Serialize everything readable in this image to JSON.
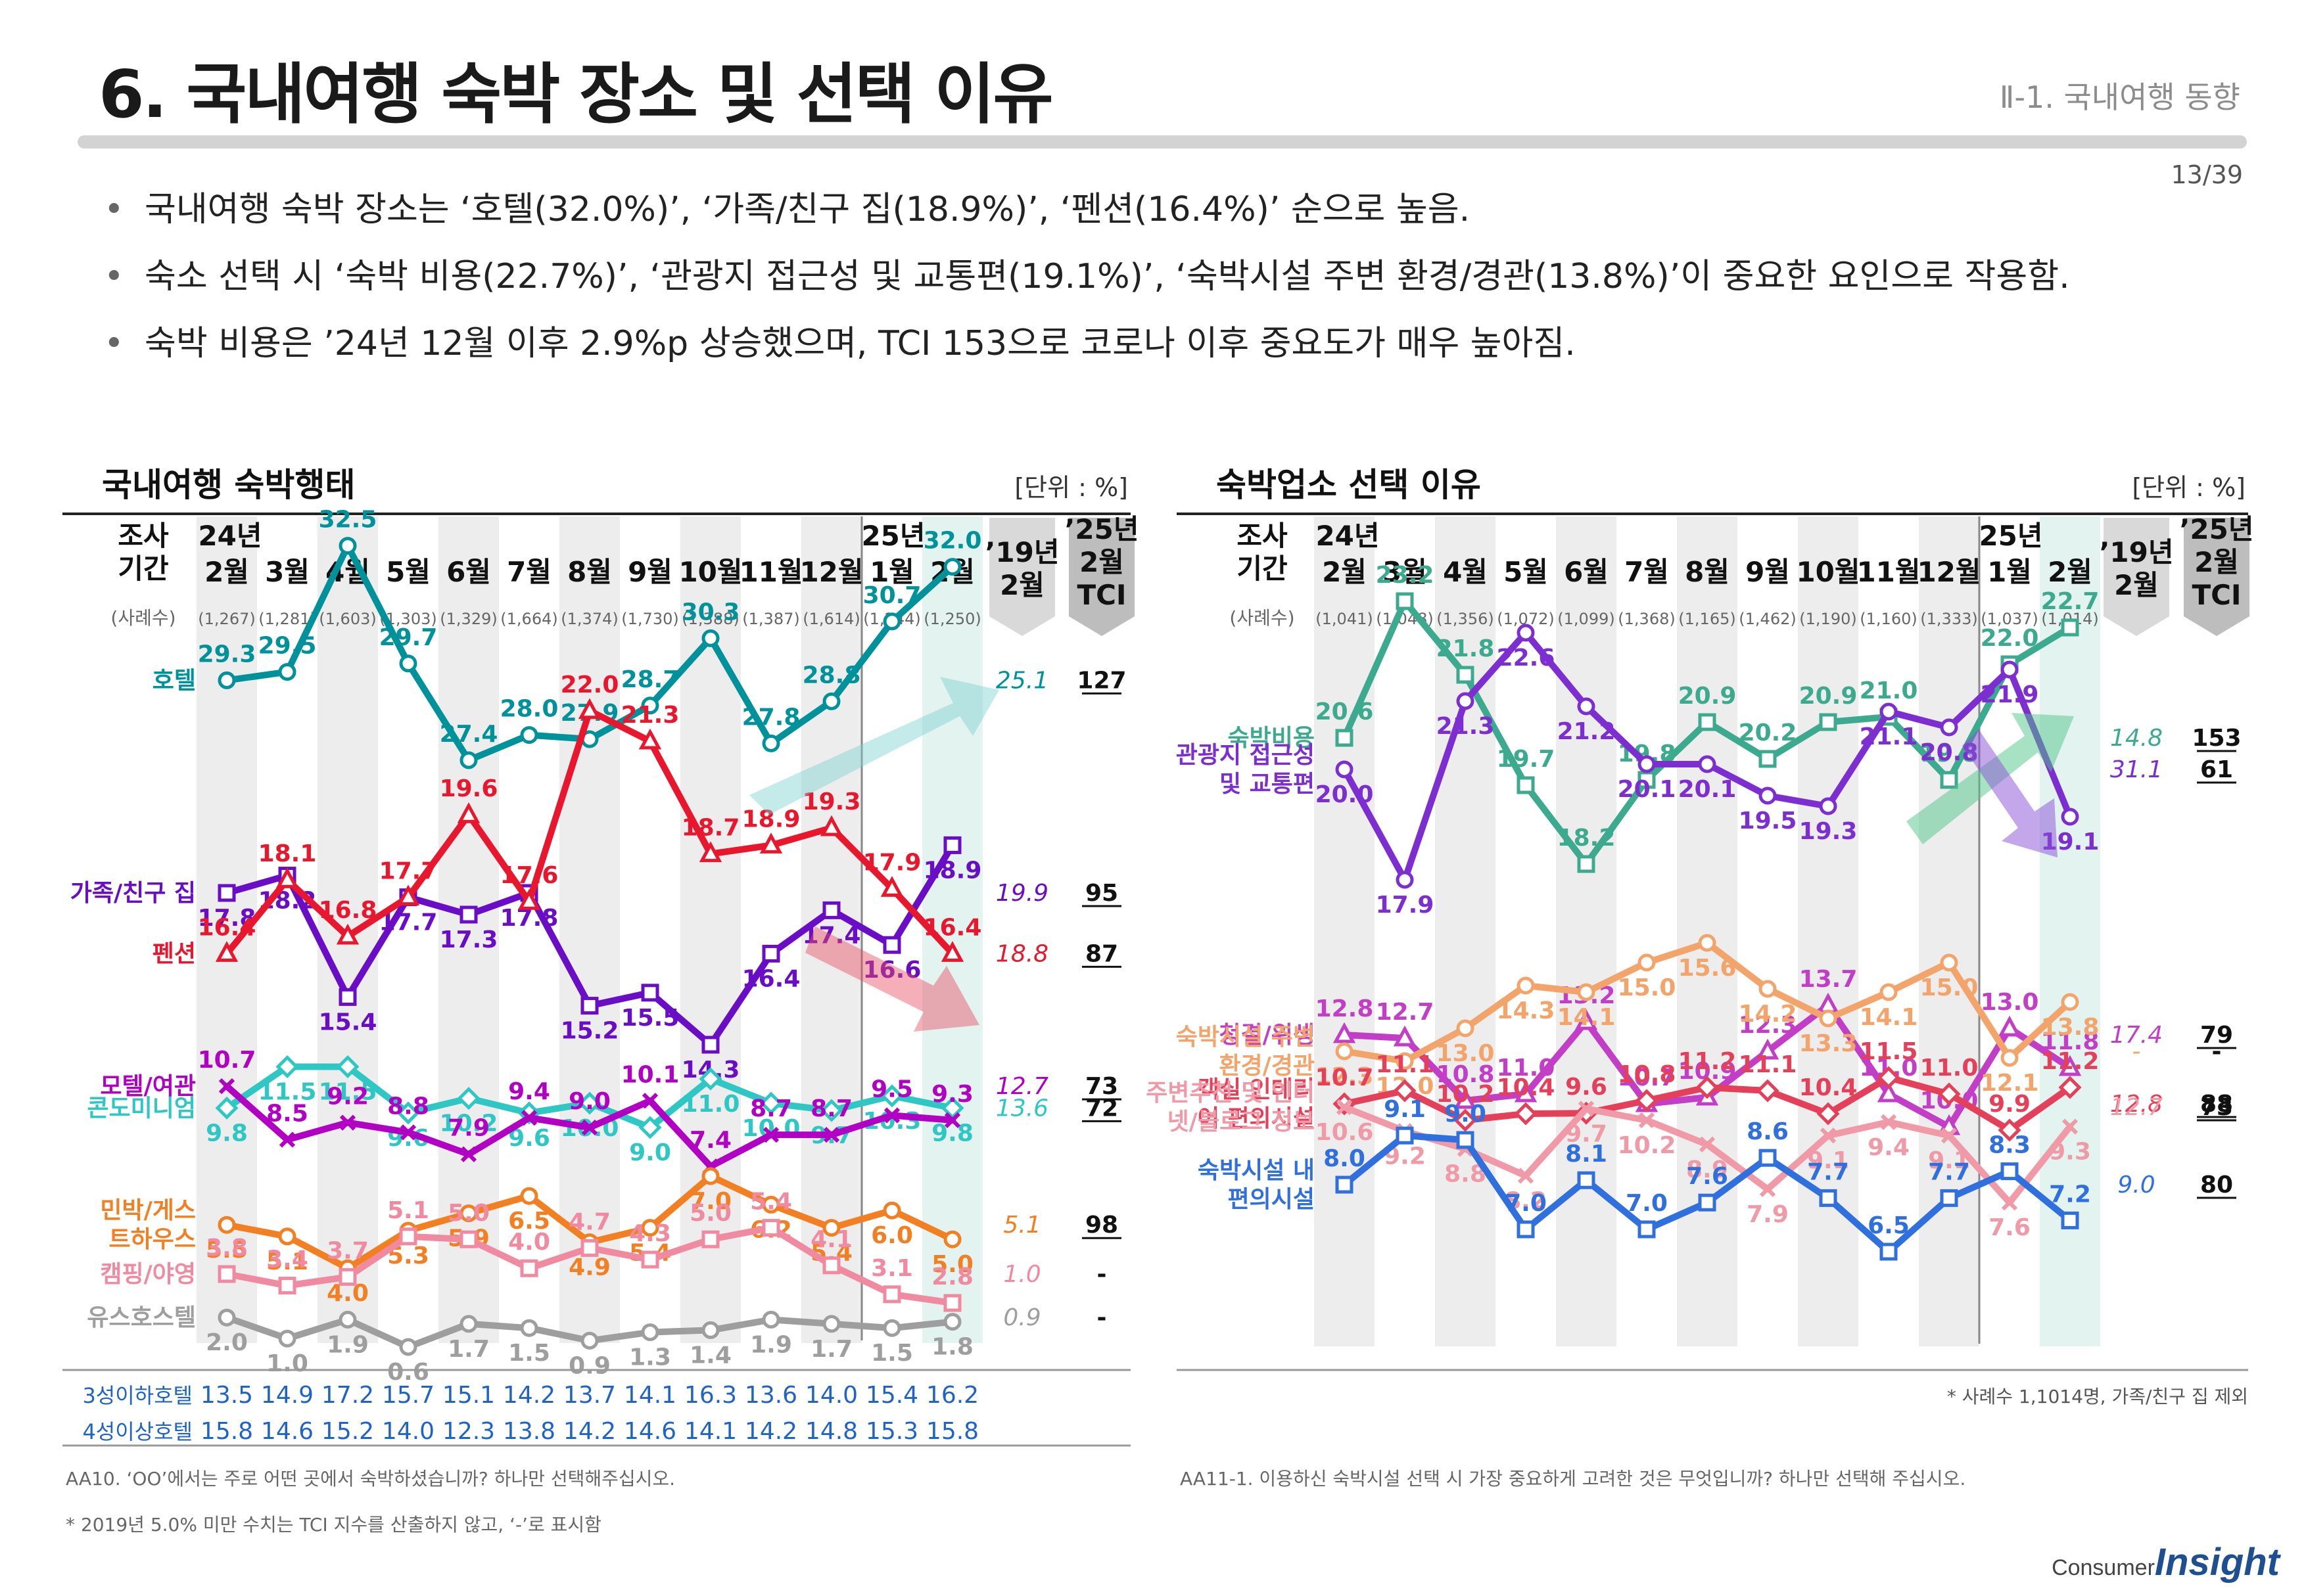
{
  "header": {
    "title": "6. 국내여행 숙박 장소 및 선택 이유",
    "section": "Ⅱ-1. 국내여행 동향",
    "page": "13/39"
  },
  "bullets": [
    "국내여행 숙박 장소는 ‘호텔(32.0%)’, ‘가족/친구 집(18.9%)’, ‘펜션(16.4%)’ 순으로 높음.",
    "숙소 선택 시 ‘숙박 비용(22.7%)’, ‘관광지 접근성 및 교통편(19.1%)’, ‘숙박시설 주변 환경/경관(13.8%)’이 중요한 요인으로 작용함.",
    "숙박 비용은 ’24년 12월 이후 2.9%p 상승했으며, TCI 153으로 코로나 이후 중요도가 매우 높아짐."
  ],
  "logo": {
    "line1": "Consumer",
    "line2": "Insight"
  },
  "chart_data": [
    {
      "type": "line",
      "title": "국내여행 숙박행태",
      "unit": "[단위 : %]",
      "header_period": "조사 기간",
      "header_samples": "(사례수)",
      "year_labels": {
        "first": "24년",
        "recent": "25년"
      },
      "months": [
        "2월",
        "3월",
        "4월",
        "5월",
        "6월",
        "7월",
        "8월",
        "9월",
        "10월",
        "11월",
        "12월",
        "1월",
        "2월"
      ],
      "samples": [
        "(1,267)",
        "(1,281)",
        "(1,603)",
        "(1,303)",
        "(1,329)",
        "(1,664)",
        "(1,374)",
        "(1,730)",
        "(1,388)",
        "(1,387)",
        "(1,614)",
        "(1,244)",
        "(1,250)"
      ],
      "extra_headers": {
        "y19": "’19년 2월",
        "tci": "’25년 2월 TCI"
      },
      "series": [
        {
          "name": "호텔",
          "color": "#00929b",
          "marker": "circle",
          "values": [
            29.3,
            29.5,
            32.5,
            29.7,
            27.4,
            28.0,
            27.9,
            28.7,
            30.3,
            27.8,
            28.8,
            30.7,
            32.0
          ],
          "y19": "25.1",
          "tci": "127"
        },
        {
          "name": "가족/친구 집",
          "color": "#6a0dc6",
          "marker": "square",
          "values": [
            17.8,
            18.2,
            15.4,
            17.7,
            17.3,
            17.8,
            15.2,
            15.5,
            14.3,
            16.4,
            17.4,
            16.6,
            18.9
          ],
          "y19": "19.9",
          "tci": "95"
        },
        {
          "name": "펜션",
          "color": "#e8172d",
          "marker": "triangle",
          "values": [
            16.4,
            18.1,
            16.8,
            17.7,
            19.6,
            17.6,
            22.0,
            21.3,
            18.7,
            18.9,
            19.3,
            17.9,
            16.4
          ],
          "y19": "18.8",
          "tci": "87"
        },
        {
          "name": "콘도미니엄",
          "color": "#2fc7c4",
          "marker": "diamond",
          "values": [
            9.8,
            11.5,
            11.5,
            9.6,
            10.2,
            9.6,
            10.0,
            9.0,
            11.0,
            10.0,
            9.7,
            10.3,
            9.8
          ],
          "y19": "13.6",
          "tci": "72"
        },
        {
          "name": "모텔/여관",
          "color": "#b100c4",
          "marker": "cross",
          "values": [
            10.7,
            8.5,
            9.2,
            8.8,
            7.9,
            9.4,
            9.0,
            10.1,
            7.4,
            8.7,
            8.7,
            9.5,
            9.3
          ],
          "y19": "12.7",
          "tci": "73"
        },
        {
          "name": "민박/게스트하우스",
          "color": "#f27f22",
          "marker": "circle",
          "values": [
            5.5,
            5.1,
            4.0,
            5.3,
            5.9,
            6.5,
            4.9,
            5.4,
            7.0,
            6.2,
            5.4,
            6.0,
            5.0
          ],
          "y19": "5.1",
          "tci": "98"
        },
        {
          "name": "캠핑/야영",
          "color": "#f08aa0",
          "marker": "square",
          "values": [
            3.8,
            3.4,
            3.7,
            5.1,
            5.0,
            4.0,
            4.7,
            4.3,
            5.0,
            5.4,
            4.1,
            3.1,
            2.8
          ],
          "y19": "1.0",
          "tci": "-"
        },
        {
          "name": "유스호스텔",
          "color": "#9e9e9e",
          "marker": "circle",
          "values": [
            2.0,
            1.0,
            1.9,
            0.6,
            1.7,
            1.5,
            0.9,
            1.3,
            1.4,
            1.9,
            1.7,
            1.5,
            1.8
          ],
          "y19": "0.9",
          "tci": "-"
        }
      ],
      "table_rows": [
        {
          "name": "3성이하호텔",
          "values": [
            "13.5",
            "14.9",
            "17.2",
            "15.7",
            "15.1",
            "14.2",
            "13.7",
            "14.1",
            "16.3",
            "13.6",
            "14.0",
            "15.4",
            "16.2"
          ]
        },
        {
          "name": "4성이상호텔",
          "values": [
            "15.8",
            "14.6",
            "15.2",
            "14.0",
            "12.3",
            "13.8",
            "14.2",
            "14.6",
            "14.1",
            "14.2",
            "14.8",
            "15.3",
            "15.8"
          ]
        }
      ],
      "footnotes": [
        "AA10. ‘OO’에서는 주로 어떤 곳에서 숙박하셨습니까? 하나만 선택해주십시오.",
        "* 2019년 5.0% 미만 수치는 TCI 지수를 산출하지 않고, ‘-’로 표시함"
      ]
    },
    {
      "type": "line",
      "title": "숙박업소 선택 이유",
      "unit": "[단위 : %]",
      "header_period": "조사 기간",
      "header_samples": "(사례수)",
      "year_labels": {
        "first": "24년",
        "recent": "25년"
      },
      "months": [
        "2월",
        "3월",
        "4월",
        "5월",
        "6월",
        "7월",
        "8월",
        "9월",
        "10월",
        "11월",
        "12월",
        "1월",
        "2월"
      ],
      "samples": [
        "(1,041)",
        "(1,048)",
        "(1,356)",
        "(1,072)",
        "(1,099)",
        "(1,368)",
        "(1,165)",
        "(1,462)",
        "(1,190)",
        "(1,160)",
        "(1,333)",
        "(1,037)",
        "(1,014)"
      ],
      "extra_headers": {
        "y19": "’19년 2월",
        "tci": "’25년 2월 TCI"
      },
      "series": [
        {
          "name": "숙박비용",
          "color": "#3caa8e",
          "marker": "square",
          "values": [
            20.6,
            23.2,
            21.8,
            19.7,
            18.2,
            19.8,
            20.9,
            20.2,
            20.9,
            21.0,
            19.8,
            22.0,
            22.7
          ],
          "y19": "14.8",
          "tci": "153"
        },
        {
          "name": "관광지 접근성 및 교통편",
          "color": "#7d2ed1",
          "marker": "circle",
          "values": [
            20.0,
            17.9,
            21.3,
            22.6,
            21.2,
            20.1,
            20.1,
            19.5,
            19.3,
            21.1,
            20.8,
            21.9,
            19.1
          ],
          "y19": "31.1",
          "tci": "61"
        },
        {
          "name": "청결/위생",
          "color": "#c23ec7",
          "marker": "triangle",
          "values": [
            12.8,
            12.7,
            10.8,
            11.0,
            13.2,
            10.7,
            10.9,
            12.3,
            13.7,
            11.0,
            10.0,
            13.0,
            11.8
          ],
          "y19": "17.4",
          "tci": "79"
        },
        {
          "name": "숙박시설 주변 환경/경관",
          "color": "#f2a46b",
          "marker": "circle",
          "values": [
            12.3,
            12.0,
            13.0,
            14.3,
            14.1,
            15.0,
            15.6,
            14.2,
            13.3,
            14.1,
            15.0,
            12.1,
            13.8
          ],
          "y19": "-",
          "tci": "-"
        },
        {
          "name": "객실 인테리어 편의시설",
          "color": "#e4405a",
          "marker": "diamond",
          "values": [
            10.7,
            11.1,
            10.2,
            10.4,
            9.6,
            10.8,
            11.2,
            11.1,
            10.4,
            11.5,
            11.0,
            9.9,
            11.2
          ],
          "y19": "12.8",
          "tci": "88"
        },
        {
          "name": "주변추천 및 인터넷/블로그 정보",
          "color": "#ef9aa6",
          "marker": "cross",
          "values": [
            10.6,
            9.2,
            8.8,
            8.2,
            9.7,
            10.2,
            8.9,
            7.9,
            9.1,
            9.4,
            9.1,
            7.6,
            9.3
          ],
          "y19": "12.7",
          "tci": "73"
        },
        {
          "name": "숙박시설 내 편의시설",
          "color": "#2f6fde",
          "marker": "square",
          "values": [
            8.0,
            9.1,
            9.0,
            7.0,
            8.1,
            7.0,
            7.6,
            8.6,
            7.7,
            6.5,
            7.7,
            8.3,
            7.2
          ],
          "y19": "9.0",
          "tci": "80"
        }
      ],
      "footnotes": [
        "* 사례수 1,1014명, 가족/친구 집 제외",
        "AA11-1. 이용하신 숙박시설 선택 시 가장 중요하게 고려한 것은 무엇입니까? 하나만 선택해 주십시오."
      ]
    }
  ]
}
